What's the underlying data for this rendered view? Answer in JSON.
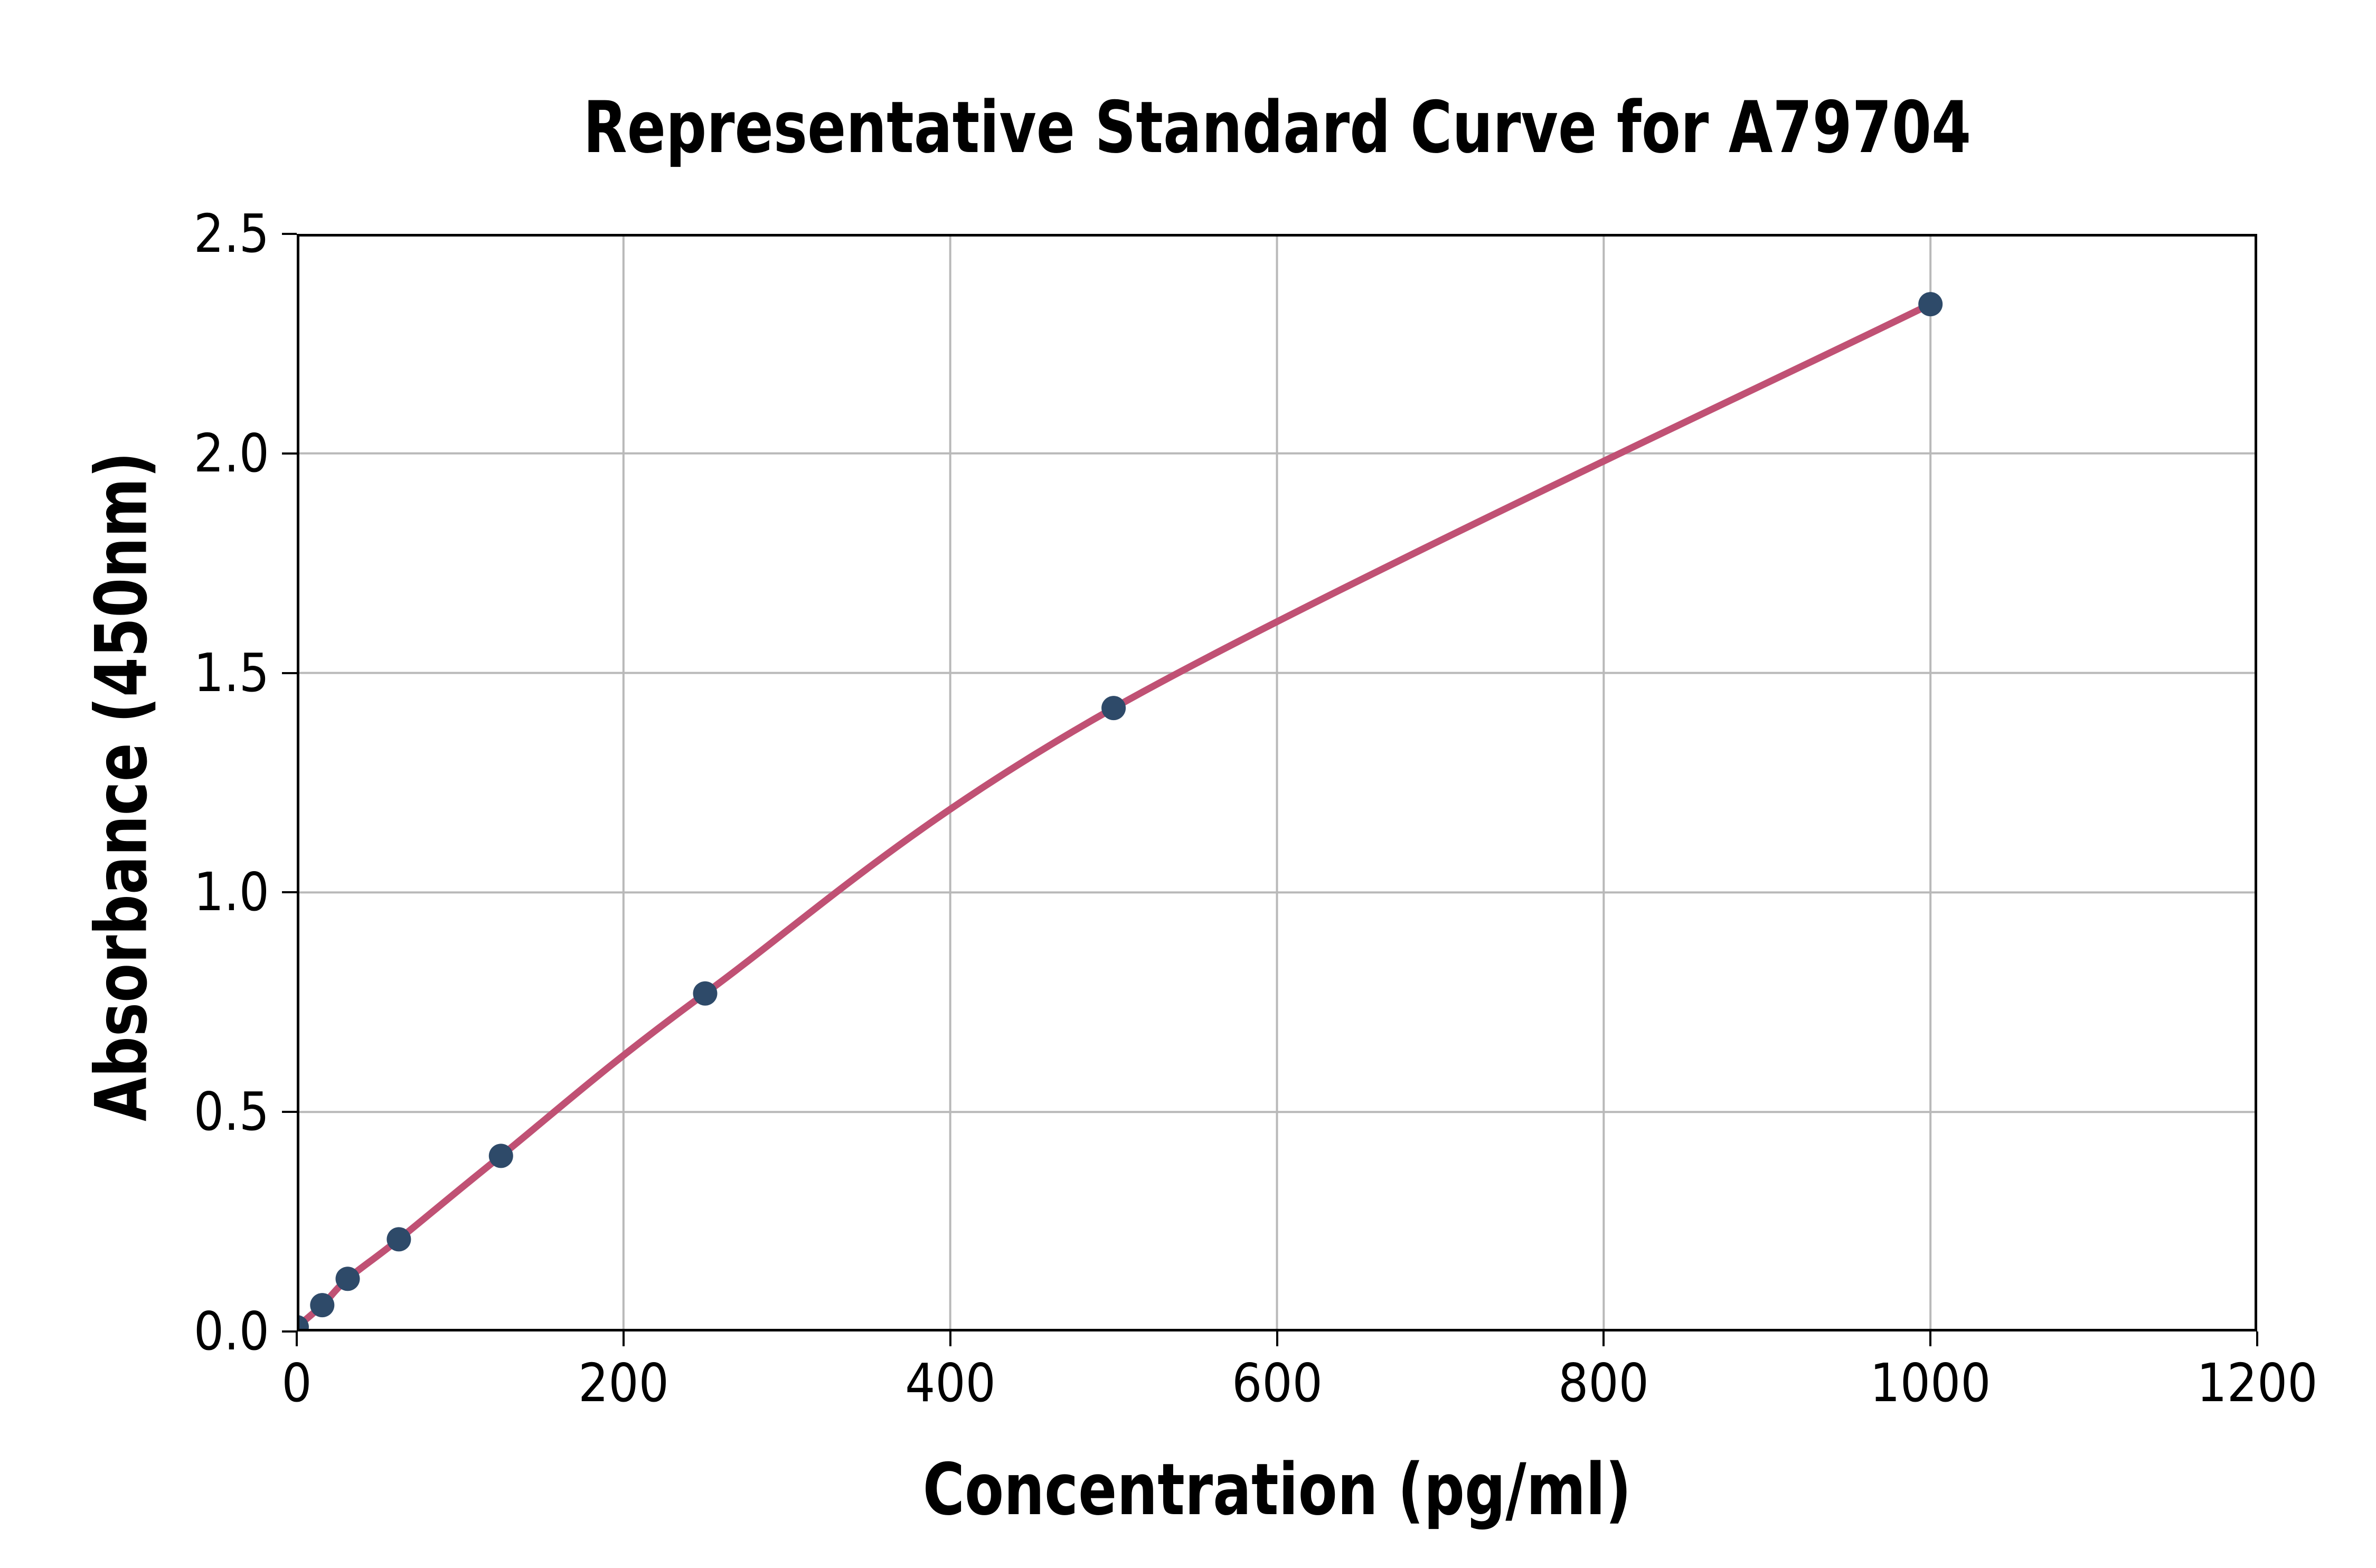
{
  "chart_data": {
    "type": "scatter",
    "title": "Representative Standard Curve for A79704",
    "xlabel": "Concentration (pg/ml)",
    "ylabel": "Absorbance (450nm)",
    "xlim": [
      0,
      1200
    ],
    "ylim": [
      0,
      2.5
    ],
    "x_ticks": [
      0,
      200,
      400,
      600,
      800,
      1000,
      1200
    ],
    "x_tick_labels": [
      "0",
      "200",
      "400",
      "600",
      "800",
      "1000",
      "1200"
    ],
    "y_ticks": [
      0,
      0.5,
      1.0,
      1.5,
      2.0,
      2.5
    ],
    "y_tick_labels": [
      "0.0",
      "0.5",
      "1.0",
      "1.5",
      "2.0",
      "2.5"
    ],
    "grid": true,
    "legend": null,
    "series": [
      {
        "name": "standard-curve",
        "type": "line+scatter",
        "points": [
          {
            "x": 0,
            "y": 0.01
          },
          {
            "x": 15.6,
            "y": 0.06
          },
          {
            "x": 31.2,
            "y": 0.12
          },
          {
            "x": 62.5,
            "y": 0.21
          },
          {
            "x": 125,
            "y": 0.4
          },
          {
            "x": 250,
            "y": 0.77
          },
          {
            "x": 500,
            "y": 1.42
          },
          {
            "x": 1000,
            "y": 2.34
          }
        ]
      }
    ],
    "colors": {
      "marker": "#2e4a69",
      "curve": "#c05174",
      "grid": "#b9b9b9",
      "axis": "#000000",
      "text": "#000000",
      "background": "#ffffff"
    }
  }
}
